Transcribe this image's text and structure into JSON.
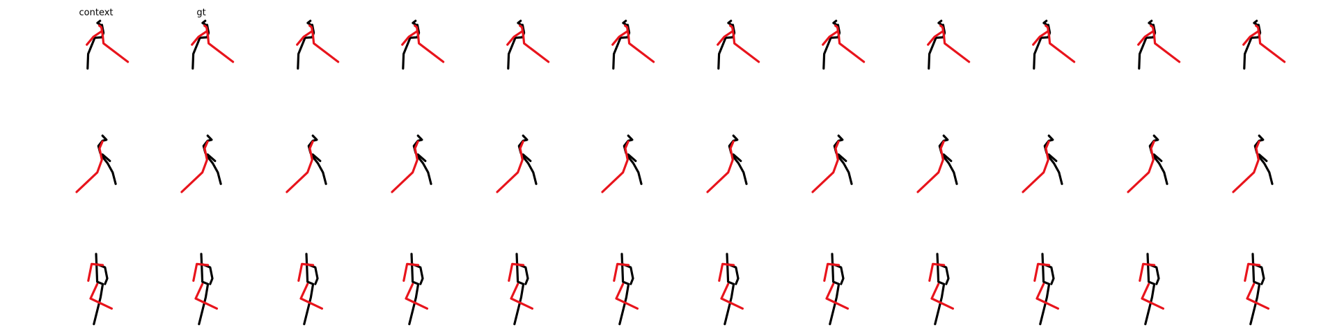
{
  "figure": {
    "column_labels": [
      "context",
      "gt"
    ],
    "colors": {
      "limb": "#000000",
      "highlight": "#e8141c",
      "background": "#ffffff"
    },
    "rows": [
      {
        "row": 1,
        "view": "side-a",
        "frames": 12,
        "segments": [
          {
            "color": "limb",
            "points": [
              [
                0.15,
                0.0
              ],
              [
                0.05,
                0.08
              ],
              [
                0.15,
                0.14
              ]
            ]
          },
          {
            "color": "limb",
            "points": [
              [
                0.22,
                0.15
              ],
              [
                0.28,
                0.45
              ],
              [
                0.22,
                0.62
              ],
              [
                -0.05,
                0.64
              ],
              [
                -0.3,
                1.25
              ],
              [
                -0.32,
                1.8
              ]
            ]
          },
          {
            "color": "highlight",
            "points": [
              [
                0.12,
                0.18
              ],
              [
                0.2,
                0.24
              ],
              [
                0.25,
                0.55
              ],
              [
                0.28,
                0.85
              ],
              [
                1.2,
                1.55
              ]
            ]
          },
          {
            "color": "highlight",
            "points": [
              [
                0.2,
                0.4
              ],
              [
                -0.1,
                0.6
              ],
              [
                -0.35,
                0.9
              ]
            ]
          }
        ]
      },
      {
        "row": 2,
        "view": "side-b",
        "frames": 12,
        "segments": [
          {
            "color": "limb",
            "points": [
              [
                0.28,
                0.0
              ],
              [
                0.45,
                0.18
              ],
              [
                0.28,
                0.22
              ],
              [
                0.1,
                0.45
              ],
              [
                0.18,
                0.75
              ],
              [
                0.3,
                0.95
              ],
              [
                0.5,
                1.2
              ],
              [
                0.72,
                1.6
              ],
              [
                0.85,
                2.1
              ]
            ]
          },
          {
            "color": "limb",
            "points": [
              [
                0.28,
                0.82
              ],
              [
                0.6,
                1.1
              ]
            ]
          },
          {
            "color": "highlight",
            "points": [
              [
                0.28,
                0.25
              ],
              [
                0.15,
                0.55
              ],
              [
                0.25,
                1.05
              ],
              [
                0.05,
                1.6
              ],
              [
                -0.85,
                2.45
              ]
            ]
          }
        ]
      },
      {
        "row": 3,
        "view": "side-c",
        "frames": 12,
        "segments": [
          {
            "color": "limb",
            "points": [
              [
                0.0,
                0.0
              ],
              [
                0.02,
                0.45
              ],
              [
                0.4,
                0.6
              ],
              [
                0.5,
                1.1
              ],
              [
                0.4,
                1.35
              ]
            ]
          },
          {
            "color": "limb",
            "points": [
              [
                0.02,
                0.45
              ],
              [
                0.05,
                1.25
              ],
              [
                0.3,
                1.35
              ],
              [
                0.2,
                1.95
              ],
              [
                -0.1,
                3.15
              ]
            ]
          },
          {
            "color": "highlight",
            "points": [
              [
                0.3,
                0.5
              ],
              [
                -0.2,
                0.45
              ],
              [
                -0.35,
                1.2
              ]
            ]
          },
          {
            "color": "highlight",
            "points": [
              [
                0.05,
                1.35
              ],
              [
                -0.25,
                2.0
              ],
              [
                0.7,
                2.45
              ]
            ]
          }
        ]
      }
    ]
  }
}
